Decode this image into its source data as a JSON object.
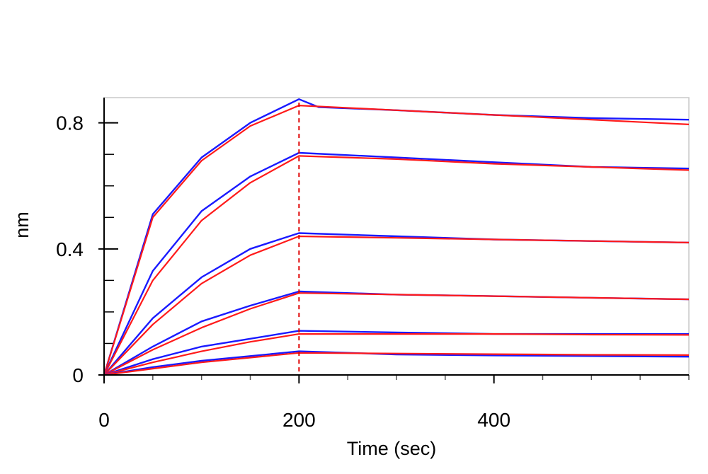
{
  "chart_data": {
    "type": "line",
    "title": "",
    "xlabel": "Time (sec)",
    "ylabel": "nm",
    "xlim": [
      0,
      600
    ],
    "ylim": [
      0,
      0.88
    ],
    "xticks": [
      {
        "value": 0,
        "label": "0"
      },
      {
        "value": 200,
        "label": "200"
      },
      {
        "value": 400,
        "label": "400"
      }
    ],
    "yticks": [
      {
        "value": 0,
        "label": "0"
      },
      {
        "value": 0.4,
        "label": "0.4"
      },
      {
        "value": 0.8,
        "label": "0.8"
      }
    ],
    "minor_x_step": 50,
    "minor_y_step": 0.1,
    "grid": false,
    "legend": "none",
    "association_end": 200,
    "marker_line": {
      "x": 200,
      "color": "#e00000",
      "style": "dashed"
    },
    "colors": {
      "measured": "#1a1aff",
      "fit": "#ff1a1a"
    },
    "series": [
      {
        "measured": [
          [
            0,
            0
          ],
          [
            50,
            0.51
          ],
          [
            100,
            0.69
          ],
          [
            150,
            0.8
          ],
          [
            200,
            0.875
          ],
          [
            220,
            0.85
          ],
          [
            300,
            0.84
          ],
          [
            400,
            0.825
          ],
          [
            500,
            0.815
          ],
          [
            600,
            0.81
          ]
        ],
        "fit": [
          [
            0,
            0
          ],
          [
            50,
            0.5
          ],
          [
            100,
            0.68
          ],
          [
            150,
            0.79
          ],
          [
            200,
            0.855
          ],
          [
            300,
            0.84
          ],
          [
            400,
            0.825
          ],
          [
            500,
            0.81
          ],
          [
            600,
            0.795
          ]
        ]
      },
      {
        "measured": [
          [
            0,
            0
          ],
          [
            50,
            0.33
          ],
          [
            100,
            0.52
          ],
          [
            150,
            0.63
          ],
          [
            200,
            0.705
          ],
          [
            300,
            0.69
          ],
          [
            400,
            0.675
          ],
          [
            500,
            0.66
          ],
          [
            600,
            0.655
          ]
        ],
        "fit": [
          [
            0,
            0
          ],
          [
            50,
            0.3
          ],
          [
            100,
            0.49
          ],
          [
            150,
            0.61
          ],
          [
            200,
            0.695
          ],
          [
            300,
            0.685
          ],
          [
            400,
            0.67
          ],
          [
            500,
            0.66
          ],
          [
            600,
            0.65
          ]
        ]
      },
      {
        "measured": [
          [
            0,
            0
          ],
          [
            50,
            0.18
          ],
          [
            100,
            0.31
          ],
          [
            150,
            0.4
          ],
          [
            200,
            0.45
          ],
          [
            300,
            0.44
          ],
          [
            400,
            0.43
          ],
          [
            500,
            0.425
          ],
          [
            600,
            0.42
          ]
        ],
        "fit": [
          [
            0,
            0
          ],
          [
            50,
            0.16
          ],
          [
            100,
            0.29
          ],
          [
            150,
            0.38
          ],
          [
            200,
            0.44
          ],
          [
            300,
            0.435
          ],
          [
            400,
            0.43
          ],
          [
            500,
            0.425
          ],
          [
            600,
            0.42
          ]
        ]
      },
      {
        "measured": [
          [
            0,
            0
          ],
          [
            50,
            0.09
          ],
          [
            100,
            0.17
          ],
          [
            150,
            0.22
          ],
          [
            200,
            0.265
          ],
          [
            300,
            0.255
          ],
          [
            400,
            0.25
          ],
          [
            500,
            0.245
          ],
          [
            600,
            0.24
          ]
        ],
        "fit": [
          [
            0,
            0
          ],
          [
            50,
            0.08
          ],
          [
            100,
            0.15
          ],
          [
            150,
            0.21
          ],
          [
            200,
            0.26
          ],
          [
            300,
            0.255
          ],
          [
            400,
            0.25
          ],
          [
            500,
            0.245
          ],
          [
            600,
            0.24
          ]
        ]
      },
      {
        "measured": [
          [
            0,
            0
          ],
          [
            50,
            0.05
          ],
          [
            100,
            0.09
          ],
          [
            150,
            0.115
          ],
          [
            200,
            0.14
          ],
          [
            300,
            0.135
          ],
          [
            400,
            0.13
          ],
          [
            500,
            0.13
          ],
          [
            600,
            0.13
          ]
        ],
        "fit": [
          [
            0,
            0
          ],
          [
            50,
            0.04
          ],
          [
            100,
            0.075
          ],
          [
            150,
            0.105
          ],
          [
            200,
            0.13
          ],
          [
            300,
            0.13
          ],
          [
            400,
            0.13
          ],
          [
            500,
            0.128
          ],
          [
            600,
            0.127
          ]
        ]
      },
      {
        "measured": [
          [
            0,
            0
          ],
          [
            50,
            0.025
          ],
          [
            100,
            0.045
          ],
          [
            150,
            0.06
          ],
          [
            200,
            0.075
          ],
          [
            300,
            0.065
          ],
          [
            400,
            0.062
          ],
          [
            500,
            0.06
          ],
          [
            600,
            0.058
          ]
        ],
        "fit": [
          [
            0,
            0
          ],
          [
            50,
            0.02
          ],
          [
            100,
            0.04
          ],
          [
            150,
            0.055
          ],
          [
            200,
            0.07
          ],
          [
            300,
            0.068
          ],
          [
            400,
            0.066
          ],
          [
            500,
            0.064
          ],
          [
            600,
            0.063
          ]
        ]
      }
    ]
  }
}
